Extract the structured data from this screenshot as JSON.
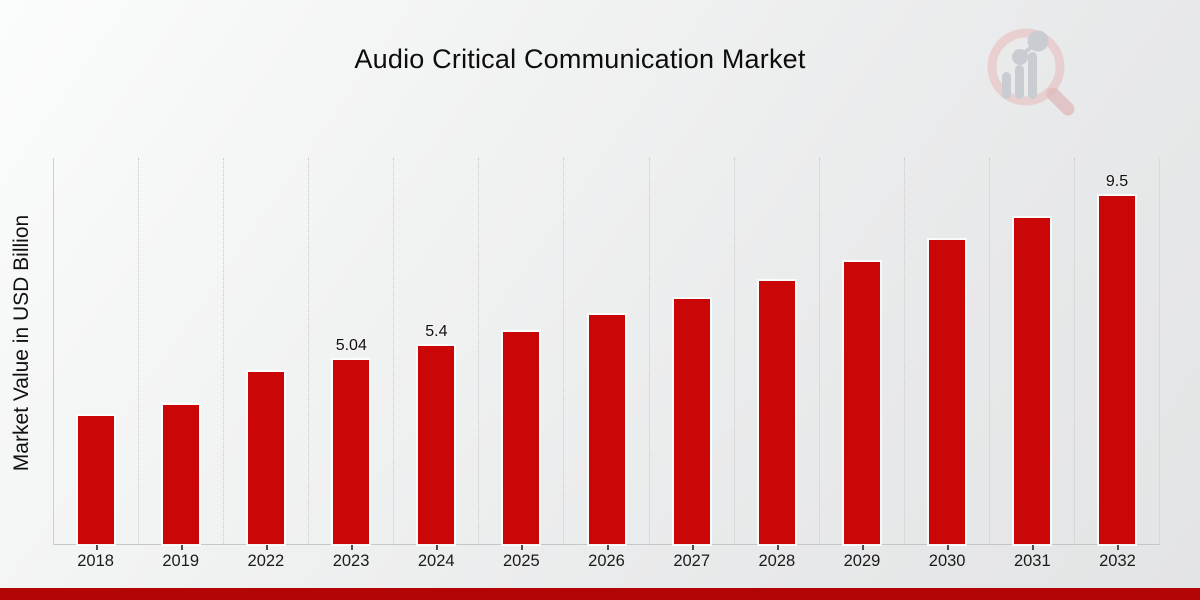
{
  "header": {
    "title": "Audio Critical Communication Market"
  },
  "watermark": {
    "icon": "magnifier-bar-chart-logo"
  },
  "chart_data": {
    "type": "bar",
    "title": "Audio Critical Communication Market",
    "categories": [
      "2018",
      "2019",
      "2022",
      "2023",
      "2024",
      "2025",
      "2026",
      "2027",
      "2028",
      "2029",
      "2030",
      "2031",
      "2032"
    ],
    "values": [
      3.5,
      3.8,
      4.7,
      5.04,
      5.4,
      5.8,
      6.25,
      6.7,
      7.2,
      7.7,
      8.3,
      8.9,
      9.5
    ],
    "bar_labels": [
      "",
      "",
      "",
      "5.04",
      "5.4",
      "",
      "",
      "",
      "",
      "",
      "",
      "",
      "9.5"
    ],
    "xlabel": "",
    "ylabel": "Market Value in USD Billion",
    "ylim": [
      0,
      10.55
    ],
    "grid": "vertical-dotted",
    "legend": "none",
    "bar_color": "#ca0606",
    "accent_bar_color": "#b30505",
    "label_color": "#101010"
  }
}
